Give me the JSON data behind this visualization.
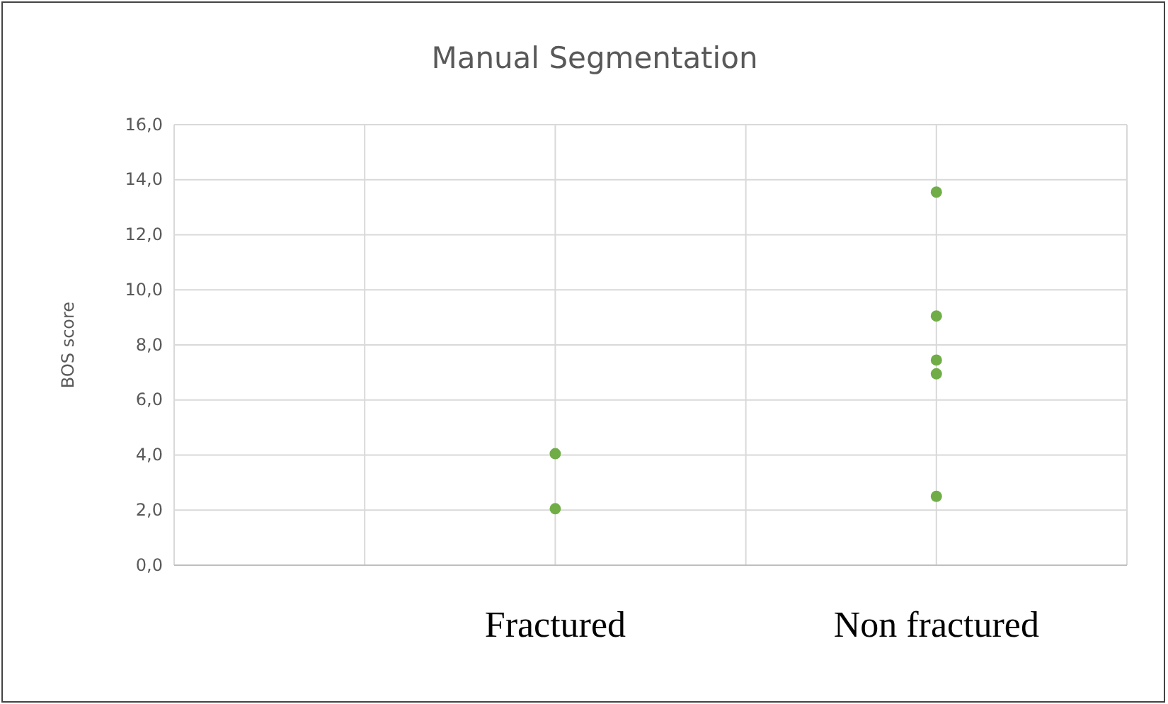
{
  "chart_data": {
    "type": "scatter",
    "title": "Manual Segmentation",
    "ylabel": "BOS score",
    "categories": [
      null,
      null,
      "Fractured",
      null,
      "Non fractured",
      null
    ],
    "series": [
      {
        "color": "#70ad47",
        "x": [
          "Fractured",
          "Fractured",
          "Non fractured",
          "Non fractured",
          "Non fractured",
          "Non fractured",
          "Non fractured"
        ],
        "values": [
          4.05,
          2.05,
          13.55,
          9.05,
          7.45,
          6.95,
          2.5
        ]
      }
    ],
    "marker": "circle",
    "grid": true,
    "ylim": [
      0,
      16
    ],
    "yticks": [
      {
        "value": 0,
        "label": "0,0"
      },
      {
        "value": 2,
        "label": "2,0"
      },
      {
        "value": 4,
        "label": "4,0"
      },
      {
        "value": 6,
        "label": "6,0"
      },
      {
        "value": 8,
        "label": "8,0"
      },
      {
        "value": 10,
        "label": "10,0"
      },
      {
        "value": 12,
        "label": "12,0"
      },
      {
        "value": 14,
        "label": "14,0"
      },
      {
        "value": 16,
        "label": "16,0"
      }
    ]
  }
}
